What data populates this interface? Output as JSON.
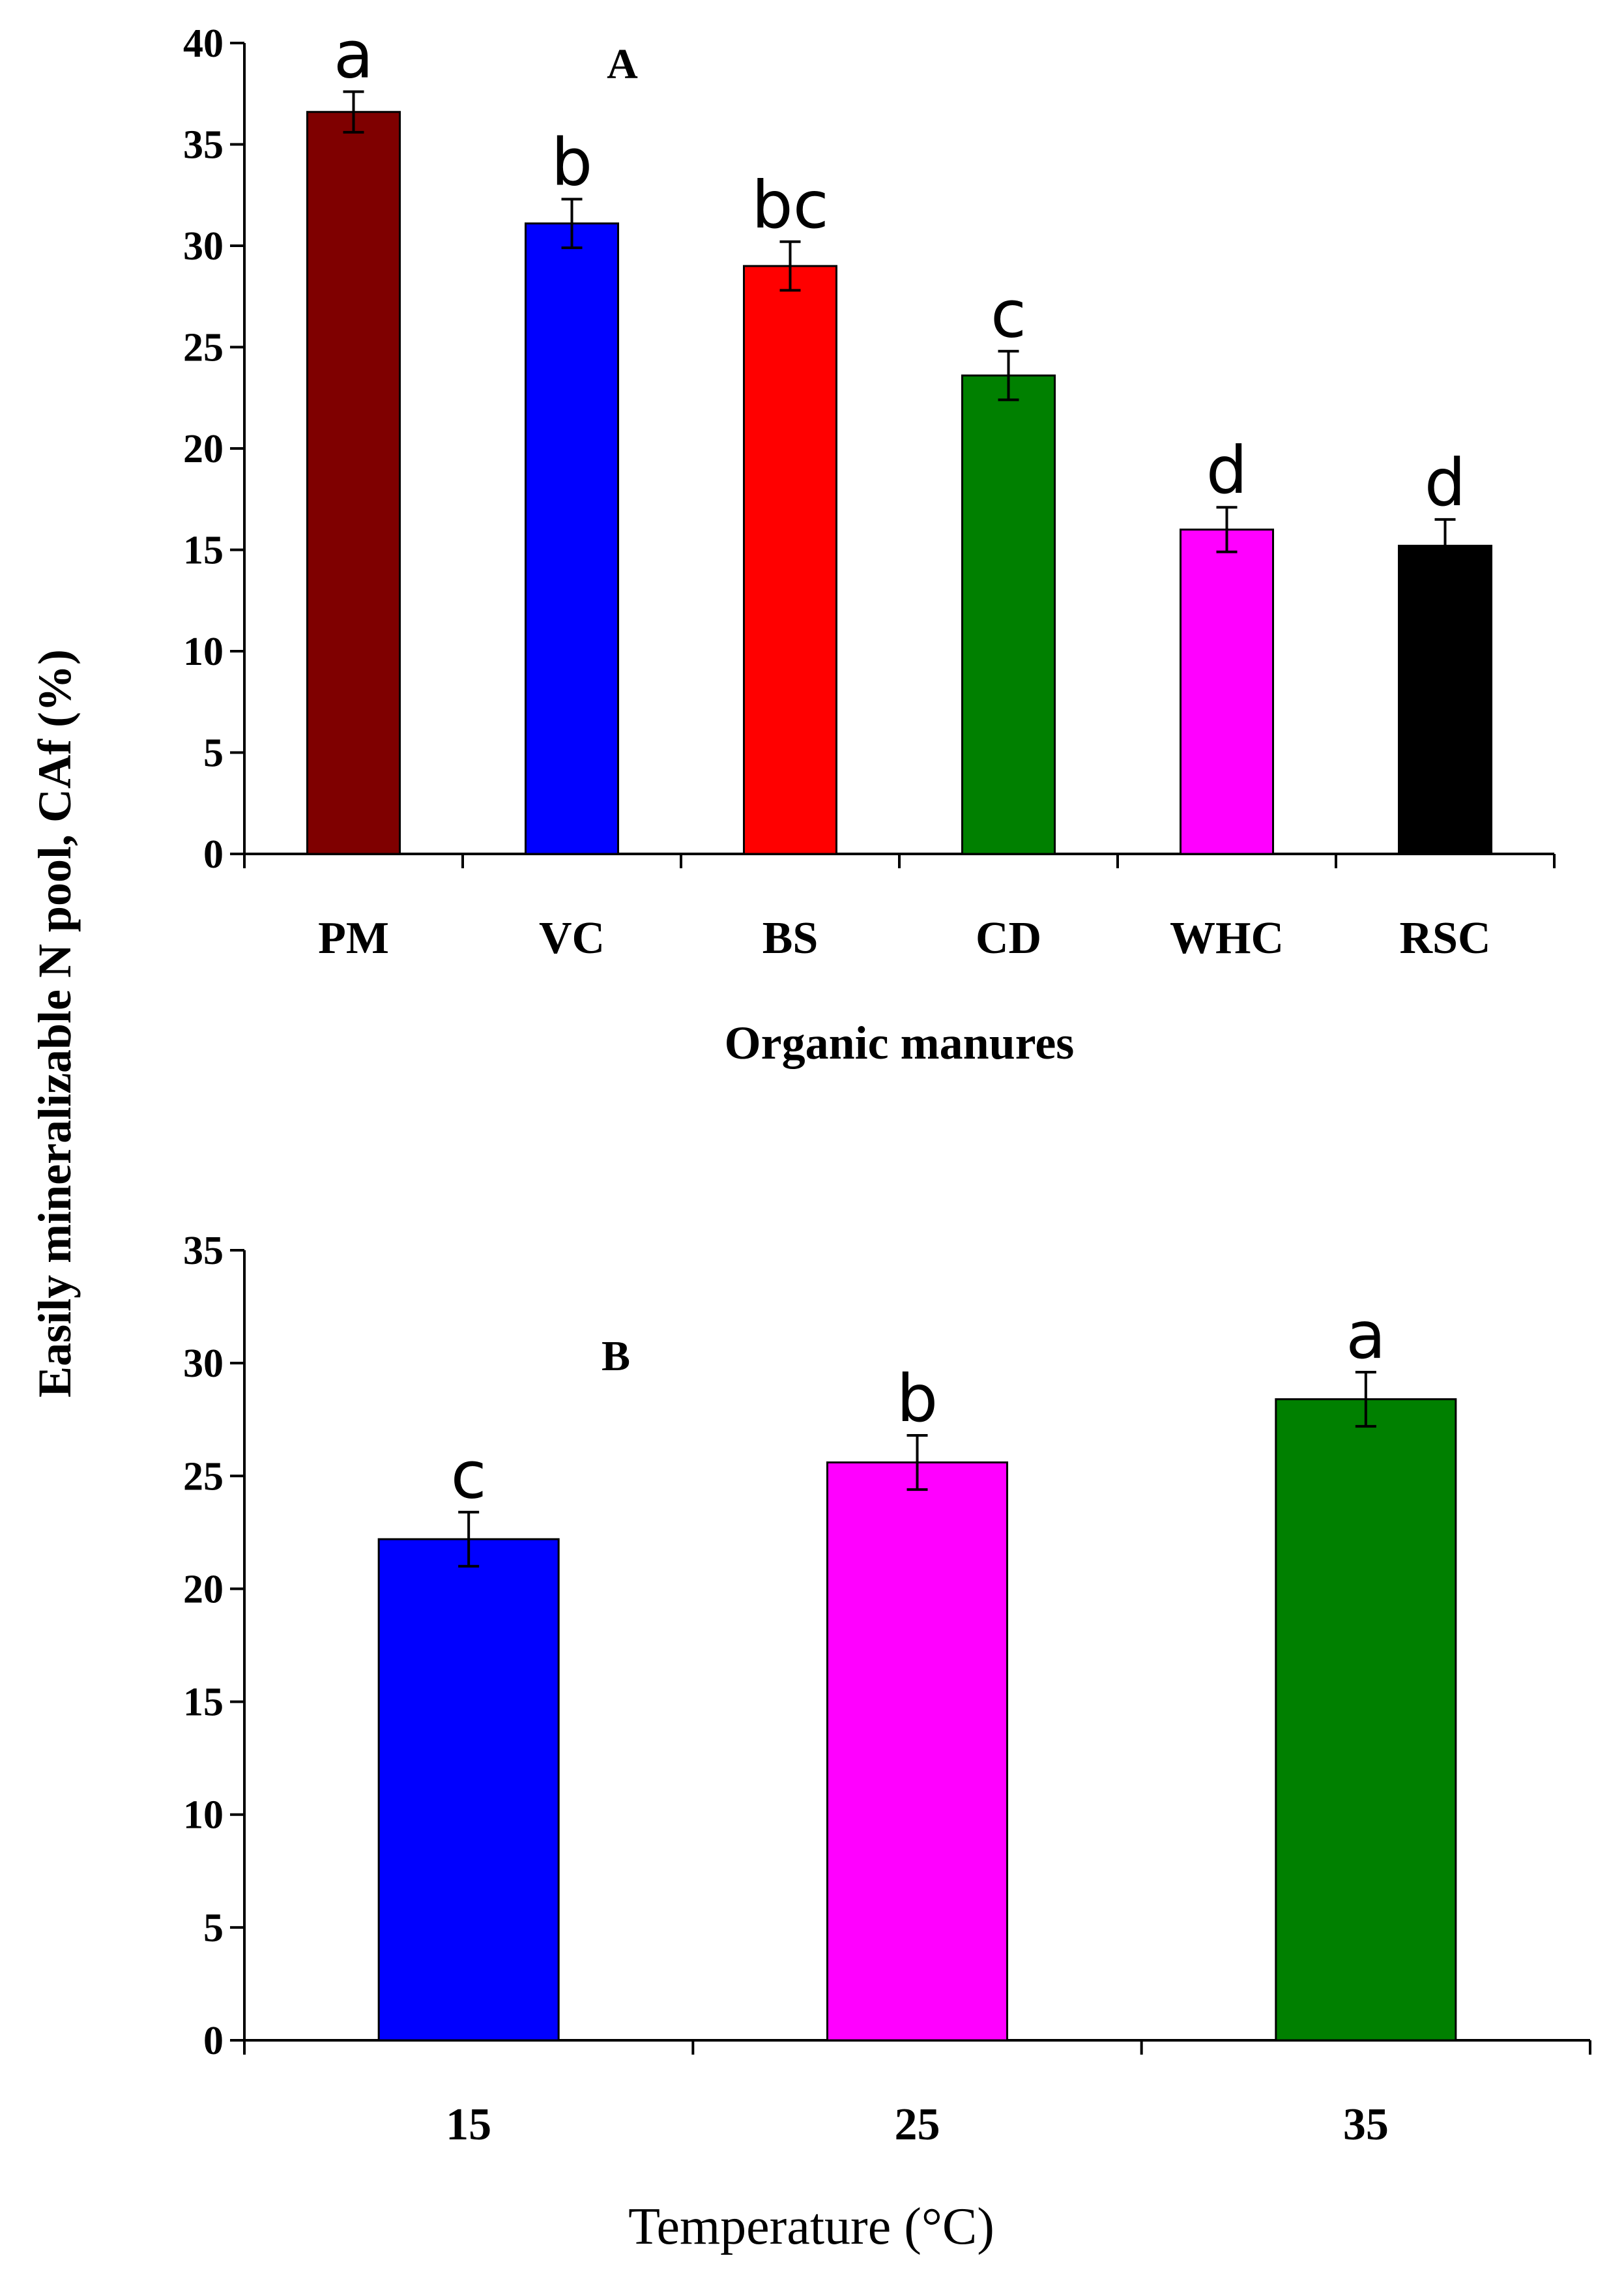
{
  "y_axis_label": "Easily mineralizable N pool, CAf (%)",
  "chart_data": [
    {
      "type": "bar",
      "panel_label": "A",
      "xlabel": "Organic manures",
      "ylabel": "Easily mineralizable N pool, CAf (%)",
      "ylim": [
        0,
        40
      ],
      "yticks": [
        "0",
        "5",
        "10",
        "15",
        "20",
        "25",
        "30",
        "35",
        "40"
      ],
      "categories": [
        "PM",
        "VC",
        "BS",
        "CD",
        "WHC",
        "RSC"
      ],
      "values": [
        36.6,
        31.1,
        29.0,
        23.6,
        16.0,
        15.2
      ],
      "errors": [
        1.0,
        1.2,
        1.2,
        1.2,
        1.1,
        1.3
      ],
      "letters": [
        "a",
        "b",
        "bc",
        "c",
        "d",
        "d"
      ],
      "colors": [
        "#7f0000",
        "#0000ff",
        "#ff0000",
        "#008000",
        "#ff00ff",
        "#000000"
      ],
      "grid": false
    },
    {
      "type": "bar",
      "panel_label": "B",
      "xlabel": "Temperature (°C)",
      "ylabel": "Easily mineralizable N pool, CAf (%)",
      "ylim": [
        0,
        35
      ],
      "yticks": [
        "0",
        "5",
        "10",
        "15",
        "20",
        "25",
        "30",
        "35"
      ],
      "categories": [
        "15",
        "25",
        "35"
      ],
      "values": [
        22.2,
        25.6,
        28.4
      ],
      "errors": [
        1.2,
        1.2,
        1.2
      ],
      "letters": [
        "c",
        "b",
        "a"
      ],
      "colors": [
        "#0000ff",
        "#ff00ff",
        "#008000"
      ],
      "grid": false
    }
  ]
}
